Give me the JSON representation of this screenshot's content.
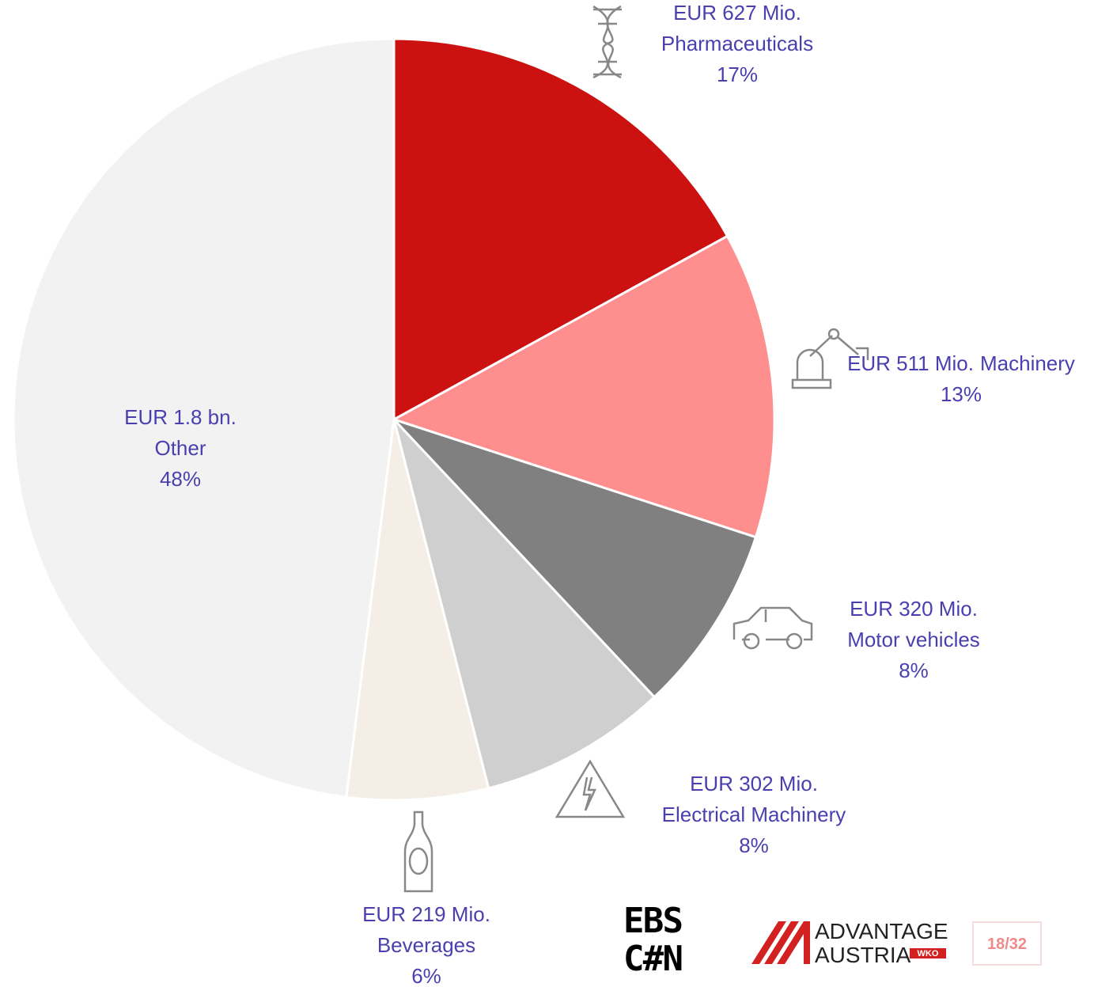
{
  "chart_data": {
    "type": "pie",
    "categories": [
      "Pharmaceuticals",
      "Machinery",
      "Motor vehicles",
      "Electrical Machinery",
      "Beverages",
      "Other"
    ],
    "amount_labels": [
      "EUR 627 Mio.",
      "EUR 511 Mio.",
      "EUR 320 Mio.",
      "EUR 302 Mio.",
      "EUR 219 Mio.",
      "EUR 1.8 bn."
    ],
    "values": [
      17,
      13,
      8,
      8,
      6,
      48
    ],
    "value_labels": [
      "17%",
      "13%",
      "8%",
      "8%",
      "6%",
      "48%"
    ],
    "colors": [
      "#cc1111",
      "#ff8f8f",
      "#808080",
      "#d0cfd0",
      "#f4eee6",
      "#f2f2f2"
    ]
  },
  "footer": {
    "logo_top": "EBS",
    "logo_bottom": "C#N",
    "brand_line1": "ADVANTAGE",
    "brand_line2": "AUSTRIA",
    "brand_badge": "WKO",
    "page": "18/32"
  }
}
